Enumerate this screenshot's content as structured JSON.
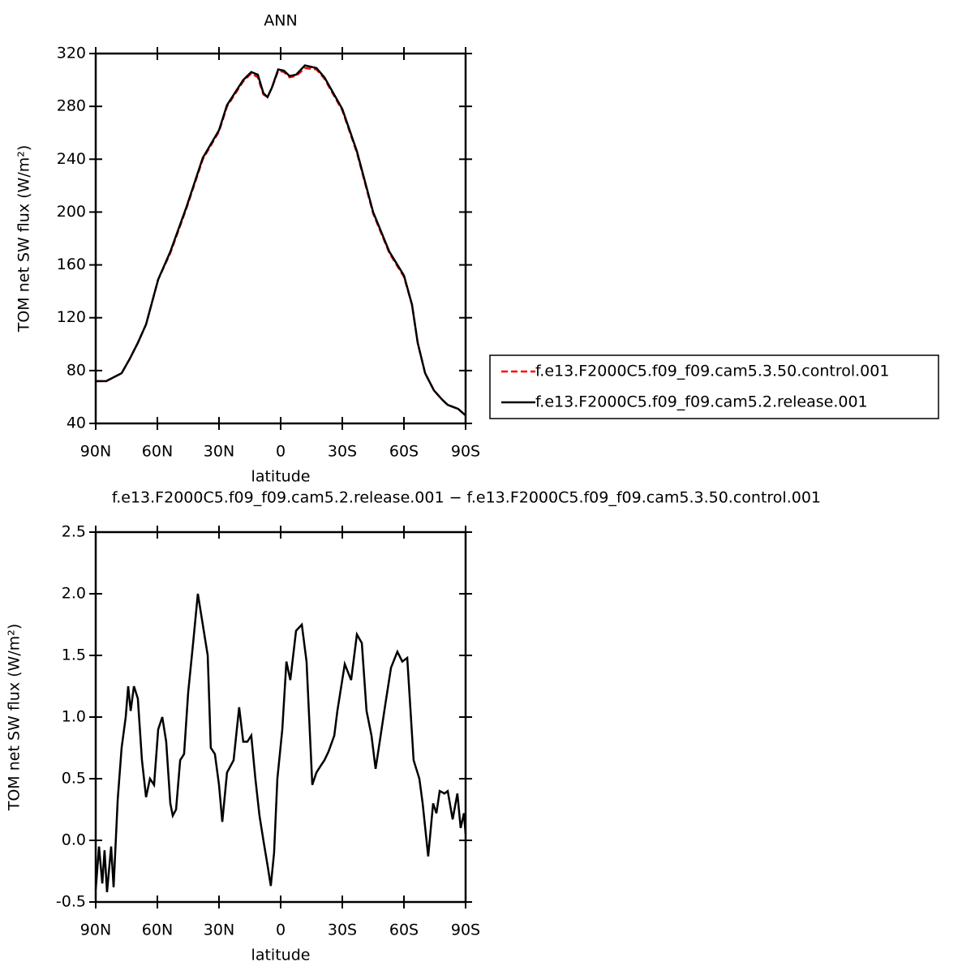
{
  "chart_data": [
    {
      "type": "line",
      "title": "ANN",
      "xlabel": "latitude",
      "ylabel": "TOM net SW flux (W/m²)",
      "x": [
        90,
        84.9,
        77.4,
        73.4,
        69.5,
        65.5,
        59.6,
        53.7,
        45.8,
        37.9,
        30,
        26.1,
        18.2,
        14.3,
        11.1,
        8.4,
        6.4,
        4.3,
        1.2,
        -1.6,
        -4.3,
        -7.5,
        -11.8,
        -17.4,
        -21.3,
        -30,
        -37.1,
        -45,
        -52.9,
        -60,
        -63.9,
        -66.7,
        -70.3,
        -74.6,
        -78.6,
        -81.3,
        -86.4,
        -90
      ],
      "series": [
        {
          "name": "f.e13.F2000C5.f09_f09.cam5.3.50.control.001",
          "color": "#ff0000",
          "linestyle": "dashed",
          "values": [
            72,
            72,
            78,
            89,
            101,
            115,
            149,
            169,
            203,
            240,
            261,
            280,
            299,
            305,
            302,
            289,
            287,
            294,
            307,
            306,
            302,
            303,
            309,
            308,
            301,
            277,
            245,
            199,
            169,
            151,
            130,
            101,
            78,
            65,
            58,
            54,
            51,
            46
          ]
        },
        {
          "name": "f.e13.F2000C5.f09_f09.cam5.2.release.001",
          "color": "#000000",
          "linestyle": "solid",
          "values": [
            72,
            72,
            78,
            89,
            101,
            115,
            149,
            170,
            204,
            241,
            262,
            281,
            300,
            306,
            304,
            290,
            287,
            294,
            308,
            307,
            303,
            304,
            311,
            309,
            302,
            278,
            246,
            200,
            170,
            152,
            130,
            101,
            78,
            65,
            58,
            54,
            51,
            46
          ]
        }
      ],
      "xlim": [
        90,
        -90
      ],
      "xticks": [
        {
          "value": 90,
          "label": "90N"
        },
        {
          "value": 60,
          "label": "60N"
        },
        {
          "value": 30,
          "label": "30N"
        },
        0,
        {
          "value": -30,
          "label": "30S"
        },
        {
          "value": -60,
          "label": "60S"
        },
        {
          "value": -90,
          "label": "90S"
        }
      ],
      "ylim": [
        40,
        320
      ],
      "yticks": [
        40,
        80,
        120,
        160,
        200,
        240,
        280,
        320
      ],
      "legend": "right"
    },
    {
      "type": "line",
      "title": "f.e13.F2000C5.f09_f09.cam5.2.release.001 − f.e13.F2000C5.f09_f09.cam5.3.50.control.001",
      "xlabel": "latitude",
      "ylabel": "TOM net SW flux (W/m²)",
      "x": [
        90,
        88.4,
        86.8,
        85.7,
        84.5,
        82.5,
        81.3,
        79.3,
        77.4,
        75.4,
        74.2,
        73.0,
        71.4,
        69.5,
        67.5,
        65.5,
        63.6,
        61.6,
        59.6,
        57.6,
        55.7,
        53.7,
        52.5,
        50.9,
        48.9,
        47.0,
        45.0,
        42.6,
        40.3,
        37.9,
        35.5,
        34.0,
        32.0,
        30.0,
        28.4,
        26.1,
        22.9,
        20.2,
        18.2,
        16.2,
        14.3,
        12.3,
        10.3,
        8.4,
        6.4,
        4.8,
        3.2,
        1.6,
        -0.8,
        -2.8,
        -4.7,
        -7.5,
        -10.3,
        -12.6,
        -15.4,
        -17.4,
        -19.3,
        -21.3,
        -23.3,
        -26.1,
        -27.6,
        -31.2,
        -34.3,
        -37.1,
        -39.5,
        -41.8,
        -44.2,
        -46.2,
        -48.2,
        -50.9,
        -53.7,
        -56.8,
        -59.2,
        -61.6,
        -64.7,
        -67.5,
        -69.1,
        -71.8,
        -74.2,
        -75.8,
        -77.4,
        -79.7,
        -81.3,
        -83.7,
        -86.0,
        -87.6,
        -89.2,
        -90
      ],
      "values": [
        -0.4,
        -0.05,
        -0.35,
        -0.08,
        -0.42,
        -0.05,
        -0.38,
        0.33,
        0.75,
        1.0,
        1.25,
        1.05,
        1.25,
        1.15,
        0.65,
        0.35,
        0.5,
        0.45,
        0.9,
        1.0,
        0.8,
        0.3,
        0.2,
        0.25,
        0.65,
        0.7,
        1.2,
        1.6,
        2.0,
        1.75,
        1.5,
        0.75,
        0.7,
        0.45,
        0.15,
        0.55,
        0.65,
        1.08,
        0.8,
        0.8,
        0.85,
        0.5,
        0.2,
        0,
        -0.2,
        -0.37,
        -0.1,
        0.5,
        0.9,
        1.45,
        1.3,
        1.7,
        1.75,
        1.45,
        0.45,
        0.55,
        0.6,
        0.65,
        0.72,
        0.85,
        1.05,
        1.43,
        1.3,
        1.67,
        1.6,
        1.05,
        0.85,
        0.58,
        0.8,
        1.1,
        1.4,
        1.53,
        1.45,
        1.48,
        0.65,
        0.5,
        0.3,
        -0.13,
        0.3,
        0.22,
        0.4,
        0.38,
        0.4,
        0.17,
        0.38,
        0.1,
        0.22,
        0.05
      ],
      "color": "#000000",
      "xlim": [
        90,
        -90
      ],
      "xticks": [
        {
          "value": 90,
          "label": "90N"
        },
        {
          "value": 60,
          "label": "60N"
        },
        {
          "value": 30,
          "label": "30N"
        },
        0,
        {
          "value": -30,
          "label": "30S"
        },
        {
          "value": -60,
          "label": "60S"
        },
        {
          "value": -90,
          "label": "90S"
        }
      ],
      "ylim": [
        -0.5,
        2.5
      ],
      "yticks": [
        -0.5,
        {
          "value": 0,
          "label": "0.0"
        },
        0.5,
        {
          "value": 1,
          "label": "1.0"
        },
        1.5,
        {
          "value": 2,
          "label": "2.0"
        },
        2.5
      ]
    }
  ]
}
